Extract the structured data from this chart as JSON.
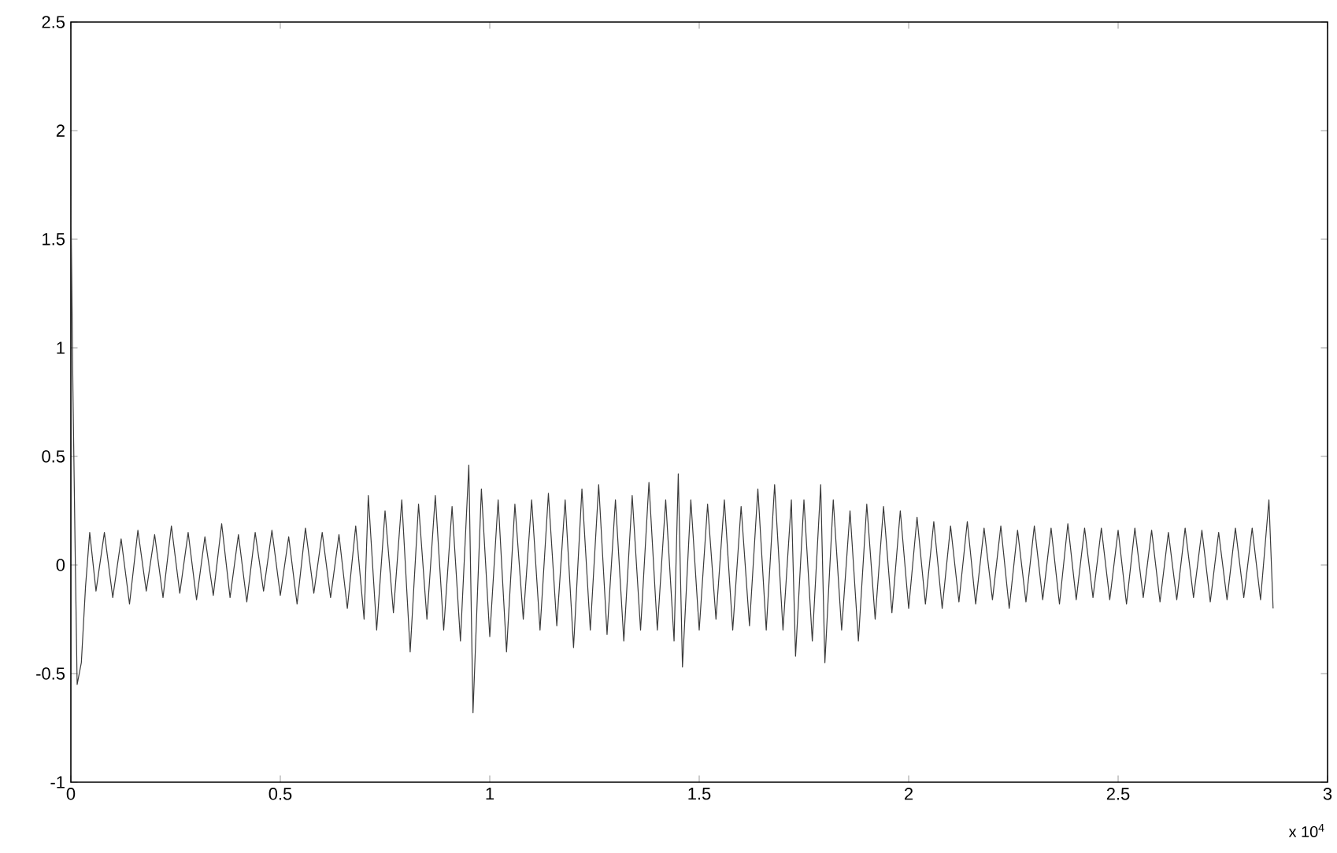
{
  "chart_data": {
    "type": "line",
    "color": "#3a3a3a",
    "x": [
      0,
      0.005,
      0.01,
      0.015,
      0.025,
      0.035,
      0.045,
      0.06,
      0.08,
      0.1,
      0.12,
      0.14,
      0.16,
      0.18,
      0.2,
      0.22,
      0.24,
      0.26,
      0.28,
      0.3,
      0.32,
      0.34,
      0.36,
      0.38,
      0.4,
      0.42,
      0.44,
      0.46,
      0.48,
      0.5,
      0.52,
      0.54,
      0.56,
      0.58,
      0.6,
      0.62,
      0.64,
      0.66,
      0.68,
      0.7,
      0.71,
      0.73,
      0.75,
      0.77,
      0.79,
      0.81,
      0.83,
      0.85,
      0.87,
      0.89,
      0.91,
      0.93,
      0.95,
      0.96,
      0.98,
      1.0,
      1.02,
      1.04,
      1.06,
      1.08,
      1.1,
      1.12,
      1.14,
      1.16,
      1.18,
      1.2,
      1.22,
      1.24,
      1.26,
      1.28,
      1.3,
      1.32,
      1.34,
      1.36,
      1.38,
      1.4,
      1.42,
      1.44,
      1.45,
      1.46,
      1.48,
      1.5,
      1.52,
      1.54,
      1.56,
      1.58,
      1.6,
      1.62,
      1.64,
      1.66,
      1.68,
      1.7,
      1.72,
      1.73,
      1.75,
      1.77,
      1.79,
      1.8,
      1.82,
      1.84,
      1.86,
      1.88,
      1.9,
      1.92,
      1.94,
      1.96,
      1.98,
      2.0,
      2.02,
      2.04,
      2.06,
      2.08,
      2.1,
      2.12,
      2.14,
      2.16,
      2.18,
      2.2,
      2.22,
      2.24,
      2.26,
      2.28,
      2.3,
      2.32,
      2.34,
      2.36,
      2.38,
      2.4,
      2.42,
      2.44,
      2.46,
      2.48,
      2.5,
      2.52,
      2.54,
      2.56,
      2.58,
      2.6,
      2.62,
      2.64,
      2.66,
      2.68,
      2.7,
      2.72,
      2.74,
      2.76,
      2.78,
      2.8,
      2.82,
      2.84,
      2.86,
      2.87
    ],
    "values": [
      1.7,
      0.8,
      0.1,
      -0.55,
      -0.45,
      -0.1,
      0.15,
      -0.12,
      0.15,
      -0.15,
      0.12,
      -0.18,
      0.16,
      -0.12,
      0.14,
      -0.15,
      0.18,
      -0.13,
      0.15,
      -0.16,
      0.13,
      -0.14,
      0.19,
      -0.15,
      0.14,
      -0.17,
      0.15,
      -0.12,
      0.16,
      -0.14,
      0.13,
      -0.18,
      0.17,
      -0.13,
      0.15,
      -0.15,
      0.14,
      -0.2,
      0.18,
      -0.25,
      0.32,
      -0.3,
      0.25,
      -0.22,
      0.3,
      -0.4,
      0.28,
      -0.25,
      0.32,
      -0.3,
      0.27,
      -0.35,
      0.46,
      -0.68,
      0.35,
      -0.33,
      0.3,
      -0.4,
      0.28,
      -0.25,
      0.3,
      -0.3,
      0.33,
      -0.28,
      0.3,
      -0.38,
      0.35,
      -0.3,
      0.37,
      -0.32,
      0.3,
      -0.35,
      0.32,
      -0.3,
      0.38,
      -0.3,
      0.3,
      -0.35,
      0.42,
      -0.47,
      0.3,
      -0.3,
      0.28,
      -0.25,
      0.3,
      -0.3,
      0.27,
      -0.28,
      0.35,
      -0.3,
      0.37,
      -0.3,
      0.3,
      -0.42,
      0.3,
      -0.35,
      0.37,
      -0.45,
      0.3,
      -0.3,
      0.25,
      -0.35,
      0.28,
      -0.25,
      0.27,
      -0.22,
      0.25,
      -0.2,
      0.22,
      -0.18,
      0.2,
      -0.2,
      0.18,
      -0.17,
      0.2,
      -0.18,
      0.17,
      -0.16,
      0.18,
      -0.2,
      0.16,
      -0.17,
      0.18,
      -0.16,
      0.17,
      -0.18,
      0.19,
      -0.16,
      0.17,
      -0.15,
      0.17,
      -0.16,
      0.16,
      -0.18,
      0.17,
      -0.15,
      0.16,
      -0.17,
      0.15,
      -0.16,
      0.17,
      -0.15,
      0.16,
      -0.17,
      0.15,
      -0.16,
      0.17,
      -0.15,
      0.17,
      -0.16,
      0.3,
      -0.2
    ],
    "xlim": [
      0,
      3
    ],
    "ylim": [
      -1,
      2.5
    ],
    "xticks": [
      0,
      0.5,
      1,
      1.5,
      2,
      2.5,
      3
    ],
    "yticks": [
      -1,
      -0.5,
      0,
      0.5,
      1,
      1.5,
      2,
      2.5
    ],
    "annotations": [
      "x 10$^{4}$"
    ],
    "grid": false
  }
}
